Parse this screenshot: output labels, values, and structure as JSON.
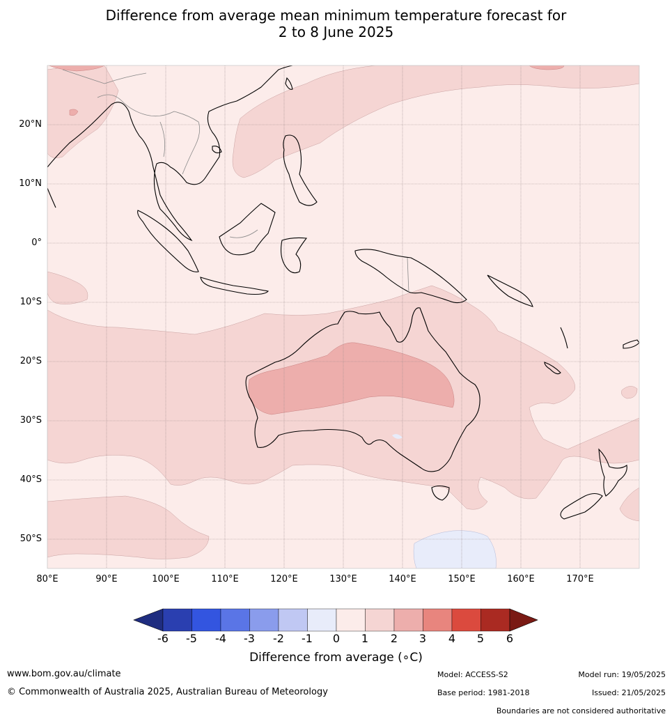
{
  "title_line1": "Difference from average mean minimum temperature forecast for",
  "title_line2": "2 to 8 June 2025",
  "lat_labels": [
    "20°N",
    "10°N",
    "0°",
    "10°S",
    "20°S",
    "30°S",
    "40°S",
    "50°S"
  ],
  "lon_labels": [
    "80°E",
    "90°E",
    "100°E",
    "110°E",
    "120°E",
    "130°E",
    "140°E",
    "150°E",
    "160°E",
    "170°E"
  ],
  "colorbar": {
    "label": "Difference from average (∘C)",
    "ticks": [
      "-6",
      "-5",
      "-4",
      "-3",
      "-2",
      "-1",
      "0",
      "1",
      "2",
      "3",
      "4",
      "5",
      "6"
    ],
    "colors": [
      "#1f2d80",
      "#2a3fb0",
      "#3355e0",
      "#5a75e6",
      "#8a9cec",
      "#c0c8f3",
      "#e8ecfa",
      "#fcecea",
      "#f5d5d3",
      "#edaeac",
      "#e8857e",
      "#db4a3e",
      "#aa2a22",
      "#7a1a14"
    ]
  },
  "footer": {
    "site": "www.bom.gov.au/climate",
    "copyright": "© Commonwealth of Australia 2025, Australian Bureau of Meteorology",
    "model": "Model: ACCESS-S2",
    "base_period": "Base period: 1981-2018",
    "model_run": "Model run: 19/05/2025",
    "issued": "Issued: 21/05/2025",
    "disclaimer": "Boundaries are not considered authoritative"
  }
}
